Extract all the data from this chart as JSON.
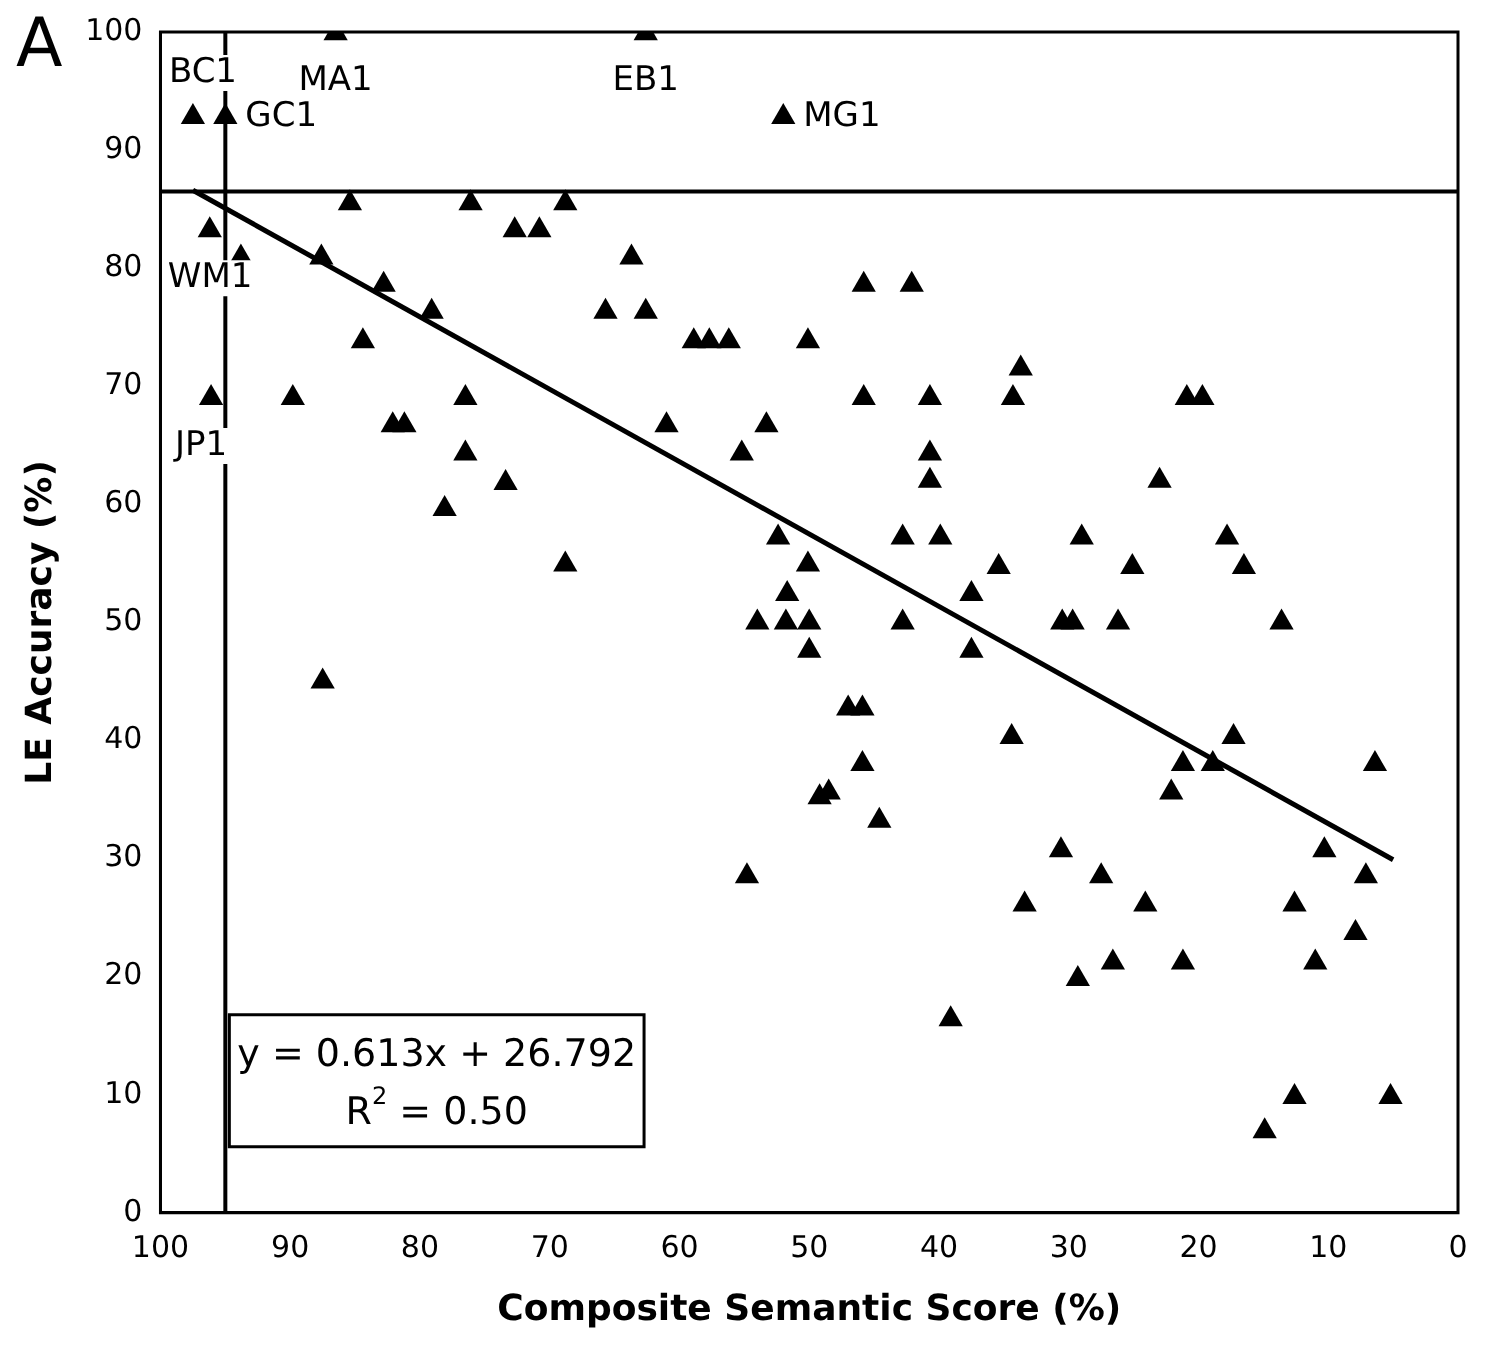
{
  "chart_data": {
    "type": "scatter",
    "xlabel": "Composite Semantic Score (%)",
    "ylabel": "LE Accuracy (%)",
    "xlim": [
      100,
      0
    ],
    "xticks": [
      100,
      90,
      80,
      70,
      60,
      50,
      40,
      30,
      20,
      10,
      0
    ],
    "ylim": [
      0,
      100
    ],
    "yticks": [
      0,
      10,
      20,
      30,
      40,
      50,
      60,
      70,
      80,
      90,
      100
    ],
    "grid": false,
    "legend": false,
    "marker": "triangle",
    "series": [
      {
        "color": "#000000",
        "x": [
          97.5,
          95.0,
          86.5,
          62.6,
          52.0,
          85.4,
          76.1,
          68.8,
          96.2,
          72.7,
          70.8,
          93.8,
          87.6,
          63.7,
          82.8,
          79.1,
          65.7,
          62.6,
          84.4,
          58.9,
          57.7,
          56.2,
          50.1,
          96.1,
          89.8,
          76.5,
          82.1,
          81.2,
          61.0,
          53.3,
          76.5,
          55.2,
          73.4,
          78.1,
          52.4,
          68.8,
          50.1,
          51.7,
          45.8,
          42.1,
          33.7,
          45.8,
          40.7,
          34.3,
          20.9,
          19.7,
          40.7,
          40.7,
          23.0,
          42.8,
          39.9,
          29.0,
          17.8,
          35.4,
          25.1,
          16.5,
          37.5,
          54.0,
          51.8,
          50.0,
          42.8,
          30.5,
          29.7,
          26.2,
          13.6,
          50.0,
          37.5,
          87.5,
          54.8,
          49.2,
          47.0,
          45.9,
          34.4,
          17.3,
          45.9,
          21.2,
          18.9,
          6.4,
          48.5,
          22.1,
          44.6,
          30.6,
          10.3,
          27.5,
          7.1,
          33.4,
          24.1,
          12.6,
          7.9,
          26.6,
          21.2,
          11.0,
          29.3,
          39.1,
          12.6,
          5.2,
          14.9
        ],
        "values": [
          92.8,
          92.8,
          99.9,
          99.9,
          92.8,
          85.5,
          85.5,
          85.5,
          83.2,
          83.2,
          83.2,
          80.9,
          80.9,
          80.9,
          78.6,
          76.3,
          76.3,
          76.3,
          73.8,
          73.8,
          73.8,
          73.8,
          73.8,
          69.0,
          69.0,
          69.0,
          66.7,
          66.7,
          66.7,
          66.7,
          64.3,
          64.3,
          61.8,
          59.6,
          57.2,
          54.9,
          54.9,
          52.4,
          78.6,
          78.6,
          71.5,
          69.0,
          69.0,
          69.0,
          69.0,
          69.0,
          64.3,
          62.0,
          62.0,
          57.2,
          57.2,
          57.2,
          57.2,
          54.7,
          54.7,
          54.7,
          52.4,
          50.0,
          50.0,
          50.0,
          50.0,
          50.0,
          50.0,
          50.0,
          50.0,
          47.6,
          47.6,
          45.0,
          28.5,
          35.2,
          42.7,
          42.7,
          40.3,
          40.3,
          38.0,
          38.0,
          38.0,
          38.0,
          35.6,
          35.6,
          33.2,
          30.7,
          30.7,
          28.5,
          28.5,
          26.1,
          26.1,
          26.1,
          23.7,
          21.2,
          21.2,
          21.2,
          19.8,
          16.4,
          9.8,
          9.8,
          6.9
        ]
      },
      {
        "type": "line",
        "color": "#000000",
        "x": [
          97.5,
          5
        ],
        "values": [
          86.6,
          29.9
        ],
        "marker": "none",
        "line_style": "solid"
      }
    ],
    "ref_lines": [
      {
        "axis": "y",
        "value": 86.5,
        "color": "#000000"
      },
      {
        "axis": "x",
        "value": 95,
        "color": "#000000"
      }
    ],
    "annotations": [
      "A",
      {
        "text": "BC1",
        "x": 97.5,
        "y": 92.8
      },
      {
        "text": "GC1",
        "x": 95.0,
        "y": 92.8
      },
      {
        "text": "MA1",
        "x": 86.5,
        "y": 99.9
      },
      {
        "text": "EB1",
        "x": 62.6,
        "y": 99.9
      },
      {
        "text": "MG1",
        "x": 52.0,
        "y": 92.8
      },
      {
        "text": "WM1",
        "x": 96.2,
        "y": 83.2
      },
      {
        "text": "JP1",
        "x": 96.1,
        "y": 69.0
      },
      "y = 0.613x + 26.792",
      "R$^{2}$ = 0.50"
    ]
  }
}
